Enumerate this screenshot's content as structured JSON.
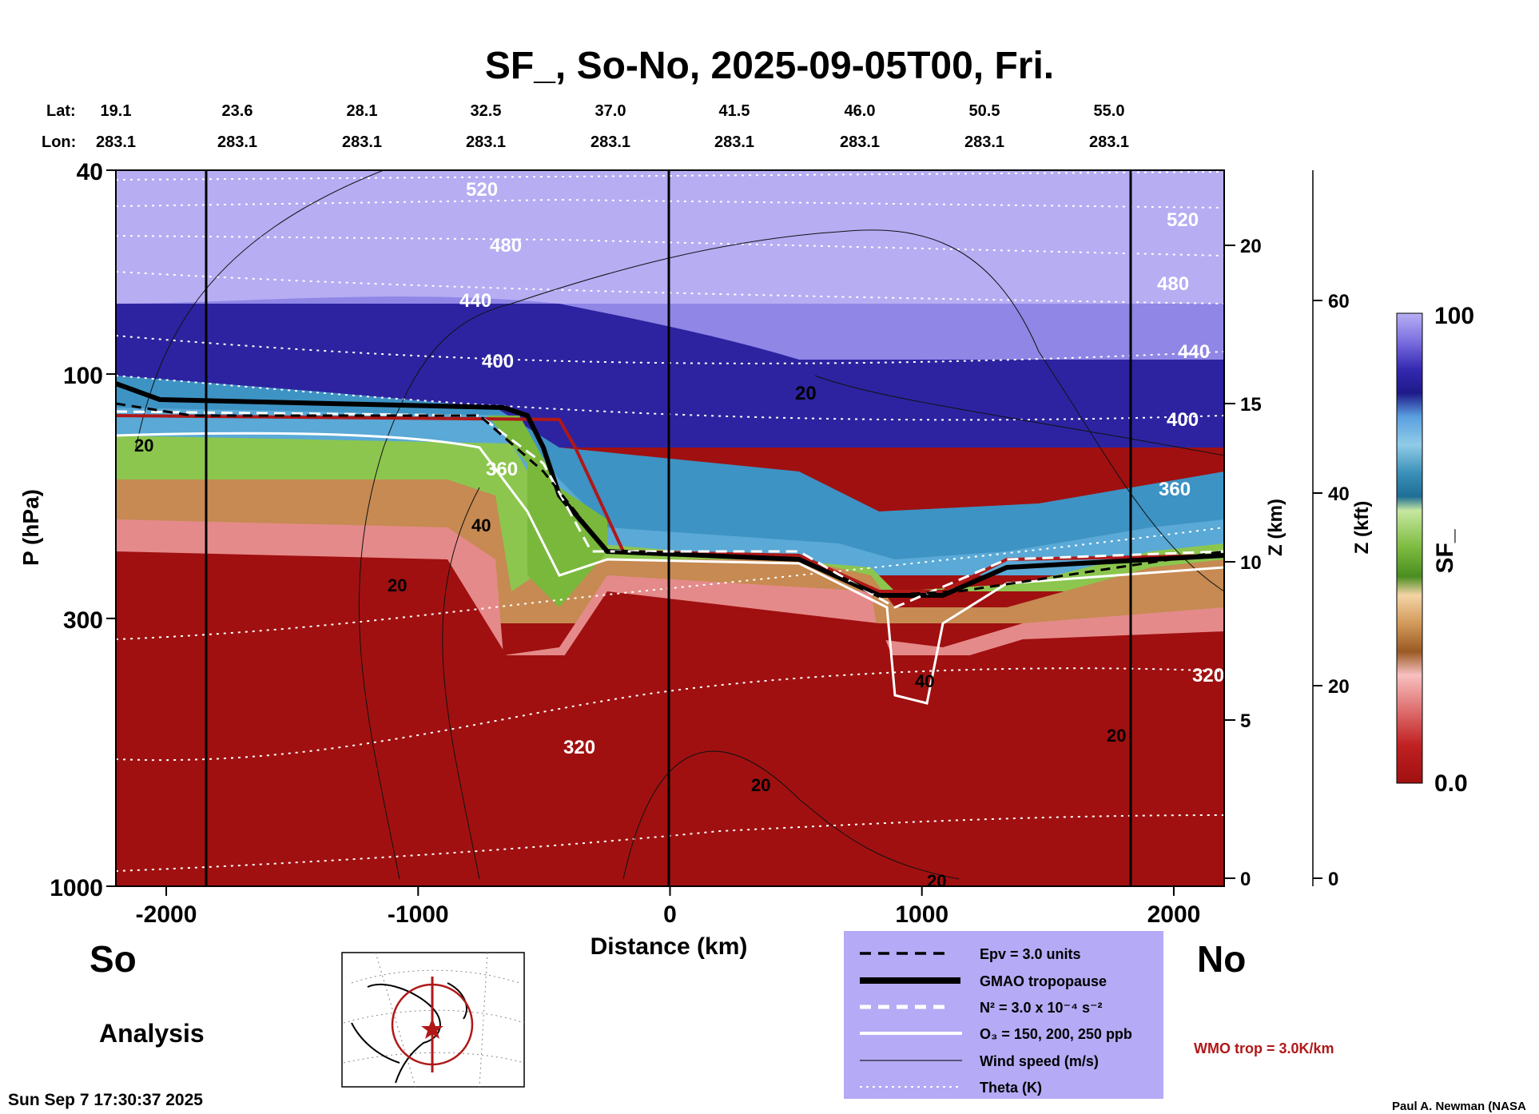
{
  "chart_data": {
    "type": "heatmap",
    "title": "SF_, So-No, 2025-09-05T00, Fri.",
    "xlabel": "Distance (km)",
    "ylabel": "P (hPa)",
    "y2label": "Z (km)",
    "y3label": "Z (kft)",
    "colorbar_label": "SF_",
    "xlim": [
      -2200,
      2200
    ],
    "ylim": [
      1000,
      40
    ],
    "x_ticks": [
      -2000,
      -1000,
      0,
      1000,
      2000
    ],
    "x_tick_labels": [
      "-2000",
      "-1000",
      "0",
      "1000",
      "2000"
    ],
    "y_ticks": [
      1000,
      300,
      100,
      40
    ],
    "y_tick_labels": [
      "1000",
      "300",
      "100",
      "40"
    ],
    "z_km_ticks": [
      "0",
      "5",
      "10",
      "15",
      "20"
    ],
    "z_kft_ticks": [
      "0",
      "20",
      "40",
      "60"
    ],
    "colorbar_range": [
      "0.0",
      "100"
    ],
    "lat_label": "Lat:",
    "lon_label": "Lon:",
    "lat_values": [
      "19.1",
      "23.6",
      "28.1",
      "32.5",
      "37.0",
      "41.5",
      "46.0",
      "50.5",
      "55.0"
    ],
    "lon_values": [
      "283.1",
      "283.1",
      "283.1",
      "283.1",
      "283.1",
      "283.1",
      "283.1",
      "283.1",
      "283.1"
    ],
    "tropopause_hpa": {
      "distance_km": [
        -2200,
        -1500,
        -900,
        -600,
        -450,
        -300,
        0,
        500,
        800,
        1000,
        1300,
        2200
      ],
      "pressure_hpa": [
        108,
        112,
        113,
        115,
        160,
        215,
        220,
        228,
        265,
        268,
        232,
        215
      ]
    },
    "theta_labels": [
      "520",
      "480",
      "440",
      "400",
      "360",
      "320",
      "320",
      "520",
      "480",
      "440",
      "400",
      "360"
    ],
    "wind_labels": [
      "20",
      "20",
      "40",
      "20",
      "40",
      "20",
      "20",
      "20"
    ],
    "legend": [
      {
        "label": "Epv = 3.0 units",
        "style": "dashed-black"
      },
      {
        "label": "GMAO tropopause",
        "style": "thick-black"
      },
      {
        "label": "N² = 3.0 x 10⁻⁴ s⁻²",
        "style": "dashed-white"
      },
      {
        "label": "O₃ = 150, 200, 250 ppb",
        "style": "solid-white"
      },
      {
        "label": "Wind speed (m/s)",
        "style": "thin-black"
      },
      {
        "label": "Theta (K)",
        "style": "dotted-white"
      }
    ],
    "wmo_label": "WMO trop = 3.0K/km"
  },
  "labels": {
    "south": "So",
    "north": "No",
    "analysis": "Analysis",
    "timestamp": "Sun Sep  7 17:30:37 2025",
    "credit": "Paul A. Newman (NASA"
  },
  "colors": {
    "lower": "#a01010",
    "upper": "#b4aaf2",
    "legend_bg": "#b4aaf5",
    "wmo": "#b01818"
  }
}
